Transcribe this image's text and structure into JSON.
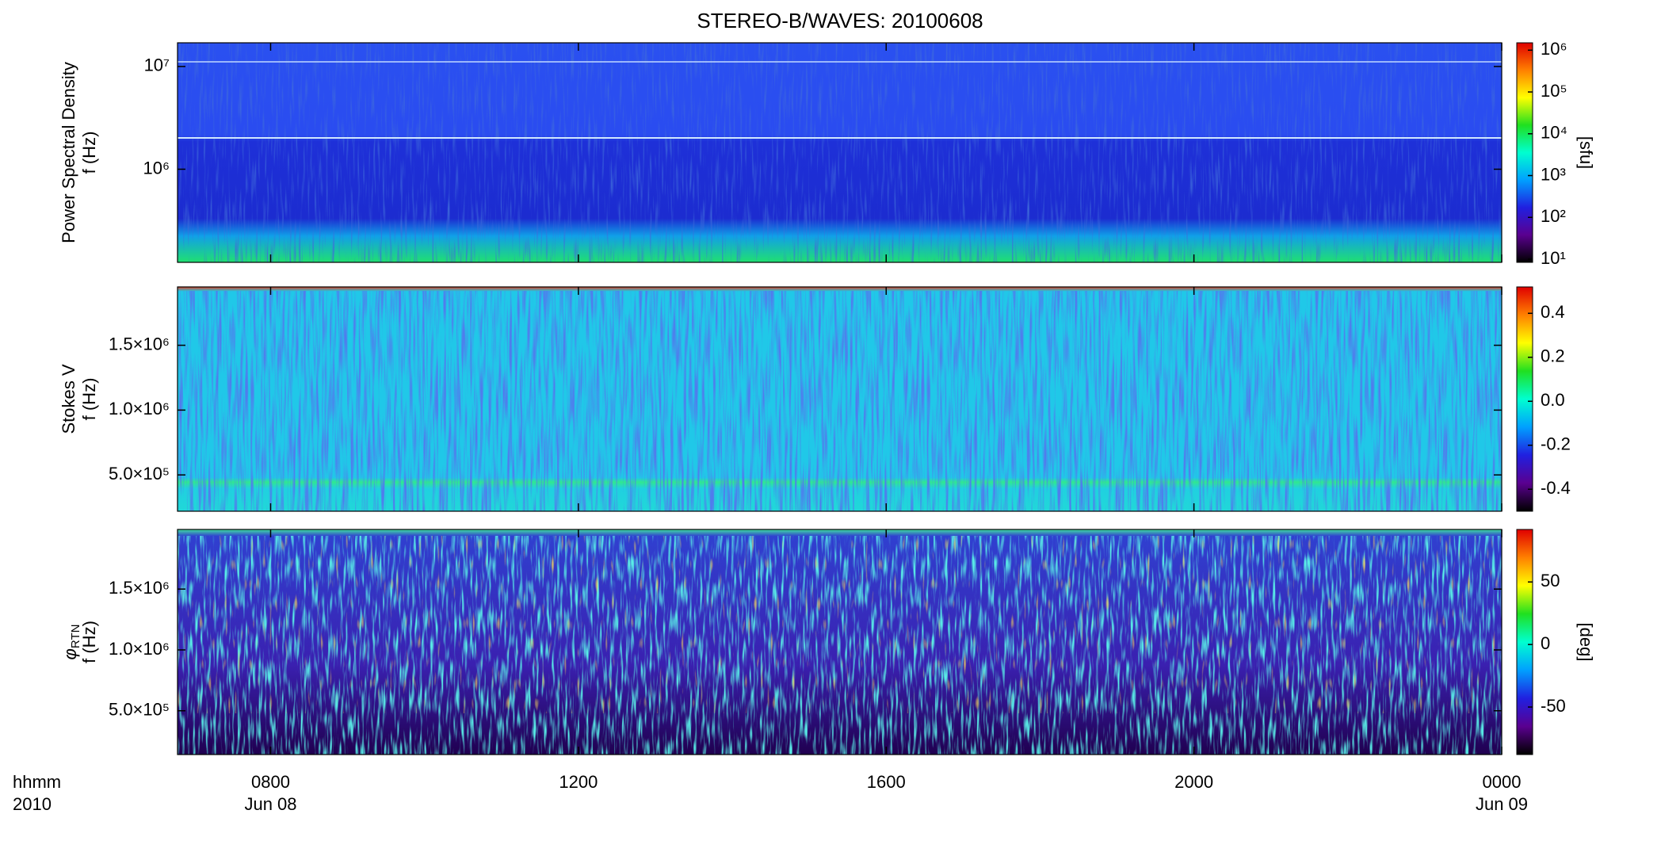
{
  "title": "STEREO-B/WAVES: 20100608",
  "x_axis": {
    "xlim": [
      6.79,
      24
    ],
    "xticks": [
      {
        "value": 8,
        "label": "0800"
      },
      {
        "value": 12,
        "label": "1200"
      },
      {
        "value": 16,
        "label": "1600"
      },
      {
        "value": 20,
        "label": "2000"
      },
      {
        "value": 24,
        "label": "0000"
      }
    ],
    "date_labels": [
      {
        "value": 8,
        "label": "Jun 08"
      },
      {
        "value": 24,
        "label": "Jun 09"
      }
    ],
    "unit_labels": [
      "hhmm",
      "2010"
    ]
  },
  "colormap": [
    "#000000",
    "#5a0090",
    "#2020e0",
    "#00a0ff",
    "#00ffd0",
    "#20e020",
    "#ffff00",
    "#ff8000",
    "#e00000"
  ],
  "chart_data": [
    {
      "type": "spectrogram",
      "ylabel": "Power Spectral Density",
      "ylabel2": "f (Hz)",
      "ylog": true,
      "ylim": [
        124000,
        17000000
      ],
      "yticks": [
        {
          "value": 1000000,
          "label": "10⁶"
        },
        {
          "value": 10000000,
          "label": "10⁷"
        }
      ],
      "colorbar": {
        "label": "[sfu]",
        "log": true,
        "lim": [
          8.4,
          1500000
        ],
        "ticks": [
          {
            "value": 10,
            "label": "10¹"
          },
          {
            "value": 100,
            "label": "10²"
          },
          {
            "value": 1000,
            "label": "10³"
          },
          {
            "value": 10000,
            "label": "10⁴"
          },
          {
            "value": 100000,
            "label": "10⁵"
          },
          {
            "value": 1000000,
            "label": "10⁶"
          }
        ]
      }
    },
    {
      "type": "spectrogram",
      "ylabel": "Stokes V",
      "ylabel2": "f (Hz)",
      "ylog": false,
      "ylim": [
        220000,
        1950000
      ],
      "yticks": [
        {
          "value": 500000,
          "label": "5.0×10⁵"
        },
        {
          "value": 1000000,
          "label": "1.0×10⁶"
        },
        {
          "value": 1500000,
          "label": "1.5×10⁶"
        }
      ],
      "colorbar": {
        "log": false,
        "lim": [
          -0.5,
          0.52
        ],
        "ticks": [
          -0.4,
          -0.2,
          {
            "value": 0,
            "label": "0.0"
          },
          0.2,
          0.4
        ]
      }
    },
    {
      "type": "spectrogram",
      "ylabel": "φ",
      "ylabel_subscript": "RTN",
      "ylabel2": "f (Hz)",
      "ylog": false,
      "ylim": [
        140000,
        1990000
      ],
      "yticks": [
        {
          "value": 500000,
          "label": "5.0×10⁵"
        },
        {
          "value": 1000000,
          "label": "1.0×10⁶"
        },
        {
          "value": 1500000,
          "label": "1.5×10⁶"
        }
      ],
      "colorbar": {
        "label": "[deg]",
        "log": false,
        "lim": [
          -88,
          92
        ],
        "ticks": [
          -50,
          0,
          50
        ]
      }
    }
  ]
}
